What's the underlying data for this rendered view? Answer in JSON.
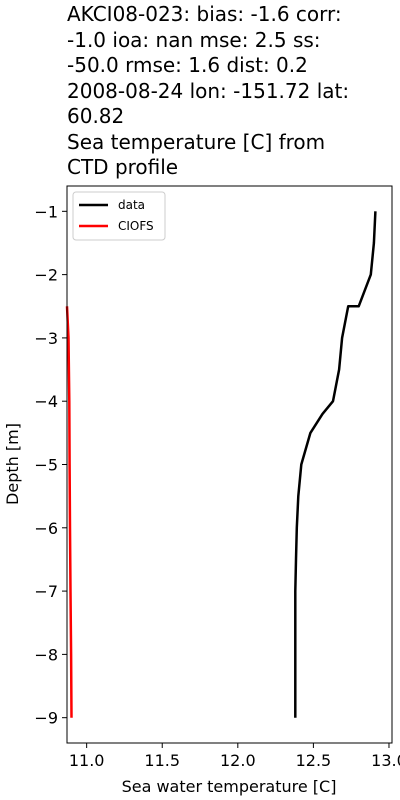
{
  "title_lines": [
    "AKCI08-023: bias: -1.6  corr:",
    "-1.0  ioa: nan  mse: 2.5  ss:",
    "-50.0  rmse: 1.6  dist: 0.2",
    "2008-08-24 lon: -151.72 lat:",
    "60.82",
    "Sea temperature [C] from",
    "CTD profile"
  ],
  "chart_data": {
    "type": "line",
    "title": "AKCI08-023: bias: -1.6  corr: -1.0  ioa: nan  mse: 2.5  ss: -50.0  rmse: 1.6  dist: 0.2 2008-08-24 lon: -151.72 lat: 60.82 Sea temperature [C] from CTD profile",
    "xlabel": "Sea water temperature [C]",
    "ylabel": "Depth [m]",
    "xlim": [
      10.87,
      13.02
    ],
    "ylim": [
      -9.4,
      -0.6
    ],
    "xticks": [
      "11.0",
      "11.5",
      "12.0",
      "12.5",
      "13.0"
    ],
    "yticks": [
      "−1",
      "−2",
      "−3",
      "−4",
      "−5",
      "−6",
      "−7",
      "−8",
      "−9"
    ],
    "legend_position": "upper-left",
    "series": [
      {
        "name": "data",
        "color": "#000000",
        "points": [
          [
            12.91,
            -1.0
          ],
          [
            12.9,
            -1.5
          ],
          [
            12.88,
            -2.0
          ],
          [
            12.8,
            -2.5
          ],
          [
            12.73,
            -2.5
          ],
          [
            12.69,
            -3.0
          ],
          [
            12.67,
            -3.5
          ],
          [
            12.63,
            -4.0
          ],
          [
            12.56,
            -4.2
          ],
          [
            12.48,
            -4.5
          ],
          [
            12.42,
            -5.0
          ],
          [
            12.4,
            -5.5
          ],
          [
            12.39,
            -6.0
          ],
          [
            12.385,
            -6.5
          ],
          [
            12.38,
            -7.0
          ],
          [
            12.38,
            -8.0
          ],
          [
            12.38,
            -8.5
          ],
          [
            12.38,
            -9.0
          ]
        ]
      },
      {
        "name": "CIOFS",
        "color": "#ff0000",
        "points": [
          [
            10.87,
            -2.5
          ],
          [
            10.88,
            -3.0
          ],
          [
            10.885,
            -4.0
          ],
          [
            10.887,
            -5.0
          ],
          [
            10.89,
            -6.0
          ],
          [
            10.893,
            -7.0
          ],
          [
            10.897,
            -8.0
          ],
          [
            10.9,
            -9.0
          ]
        ]
      }
    ]
  }
}
